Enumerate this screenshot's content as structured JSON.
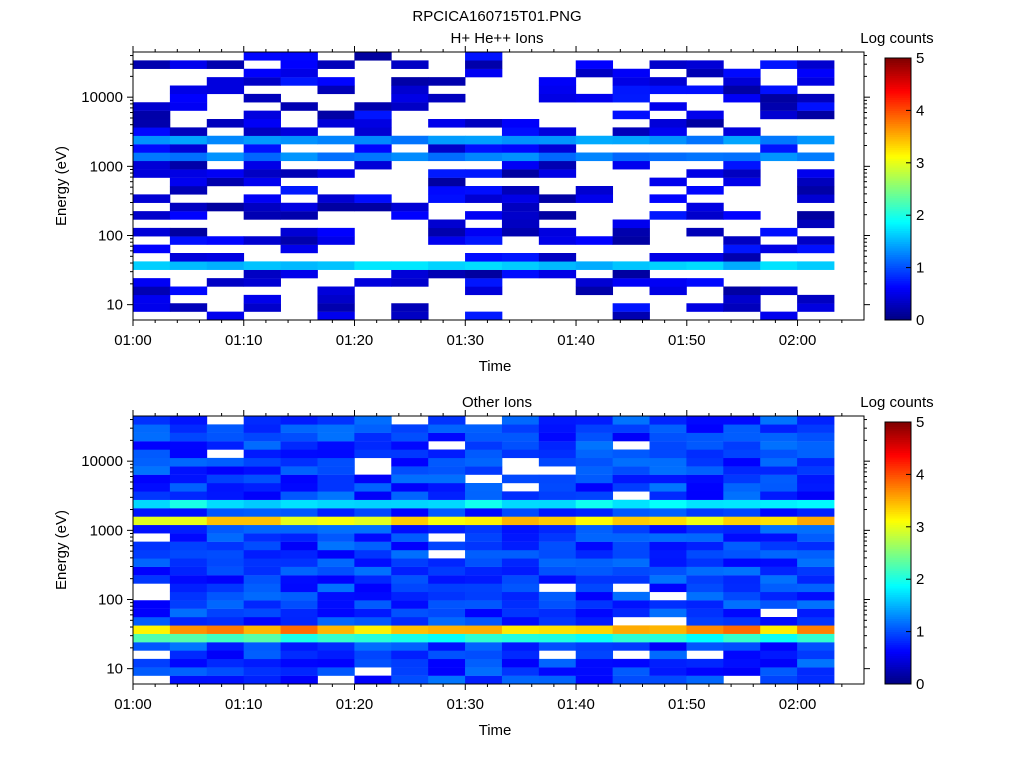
{
  "figure_title": "RPCICA160715T01.PNG",
  "chart_data": [
    {
      "type": "heatmap",
      "title": "H+ He++ Ions",
      "xlabel": "Time",
      "ylabel": "Energy (eV)",
      "xticks": [
        "01:00",
        "01:10",
        "01:20",
        "01:30",
        "01:40",
        "01:50",
        "02:00"
      ],
      "yticks": [
        "10",
        "100",
        "1000",
        "10000"
      ],
      "ylim": [
        6,
        45000
      ],
      "y_scale": "log",
      "colorbar": {
        "label": "Log counts",
        "ticks": [
          "0",
          "1",
          "2",
          "3",
          "4",
          "5"
        ],
        "range": [
          0,
          5
        ]
      },
      "time_bins": 19,
      "energy_bins": 32,
      "profile": {
        "background_log_counts": 0.15,
        "empty_fraction": 0.55,
        "bands": [
          {
            "energy_eV": 40,
            "peak_log_counts": 1.5
          },
          {
            "energy_eV": 35,
            "peak_log_counts": 1.7
          },
          {
            "energy_eV": 1300,
            "peak_log_counts": 1.3
          },
          {
            "energy_eV": 2600,
            "peak_log_counts": 1.4
          }
        ]
      }
    },
    {
      "type": "heatmap",
      "title": "Other Ions",
      "xlabel": "Time",
      "ylabel": "Energy (eV)",
      "xticks": [
        "01:00",
        "01:10",
        "01:20",
        "01:30",
        "01:40",
        "01:50",
        "02:00"
      ],
      "yticks": [
        "10",
        "100",
        "1000",
        "10000"
      ],
      "ylim": [
        6,
        45000
      ],
      "y_scale": "log",
      "colorbar": {
        "label": "Log counts",
        "ticks": [
          "0",
          "1",
          "2",
          "3",
          "4",
          "5"
        ],
        "range": [
          0,
          5
        ]
      },
      "time_bins": 19,
      "energy_bins": 32,
      "profile": {
        "background_log_counts": 0.6,
        "empty_fraction": 0.07,
        "bands": [
          {
            "energy_eV": 40,
            "peak_log_counts": 3.7
          },
          {
            "energy_eV": 30,
            "peak_log_counts": 2.2
          },
          {
            "energy_eV": 1300,
            "peak_log_counts": 3.4
          },
          {
            "energy_eV": 2600,
            "peak_log_counts": 1.9
          }
        ]
      }
    }
  ]
}
